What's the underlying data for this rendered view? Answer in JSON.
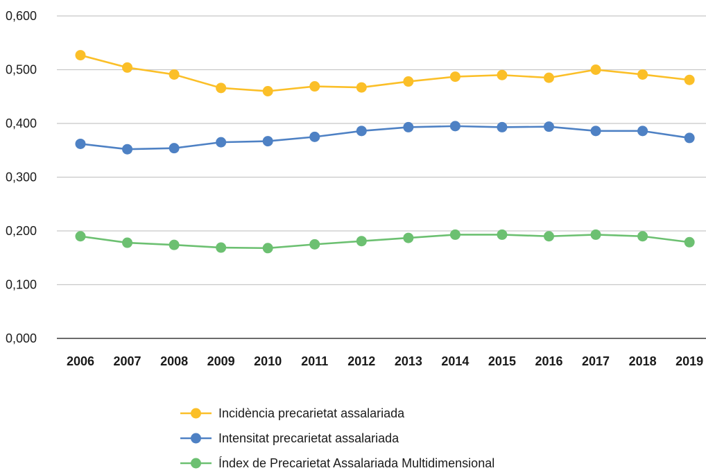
{
  "chart_data": {
    "type": "line",
    "title": "",
    "xlabel": "",
    "ylabel": "",
    "categories": [
      "2006",
      "2007",
      "2008",
      "2009",
      "2010",
      "2011",
      "2012",
      "2013",
      "2014",
      "2015",
      "2016",
      "2017",
      "2018",
      "2019"
    ],
    "ylim": [
      0,
      0.6
    ],
    "yticks": [
      "0,000",
      "0,100",
      "0,200",
      "0,300",
      "0,400",
      "0,500",
      "0,600"
    ],
    "grid": true,
    "legend_position": "bottom",
    "series": [
      {
        "name": "Incidència precarietat assalariada",
        "color": "#fbbf28",
        "values": [
          0.527,
          0.504,
          0.491,
          0.466,
          0.46,
          0.469,
          0.467,
          0.478,
          0.487,
          0.49,
          0.485,
          0.5,
          0.491,
          0.481
        ]
      },
      {
        "name": "Intensitat precarietat assalariada",
        "color": "#4e81c4",
        "values": [
          0.362,
          0.352,
          0.354,
          0.365,
          0.367,
          0.375,
          0.386,
          0.393,
          0.395,
          0.393,
          0.394,
          0.386,
          0.386,
          0.373
        ]
      },
      {
        "name": "Índex de Precarietat Assalariada Multidimensional",
        "color": "#6cc071",
        "values": [
          0.19,
          0.178,
          0.174,
          0.169,
          0.168,
          0.175,
          0.181,
          0.187,
          0.193,
          0.193,
          0.19,
          0.193,
          0.19,
          0.179
        ]
      }
    ]
  }
}
